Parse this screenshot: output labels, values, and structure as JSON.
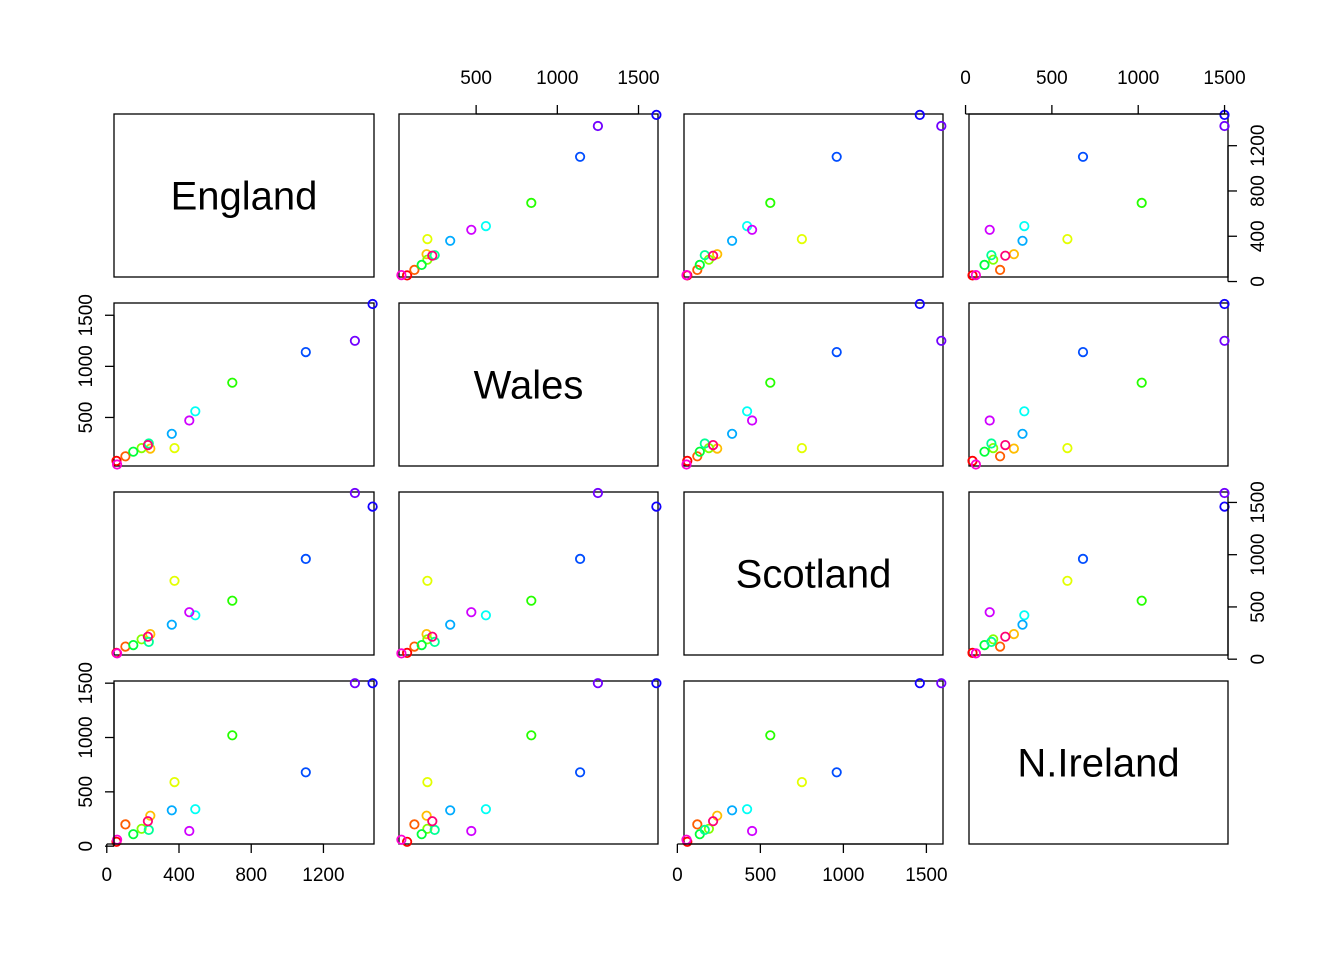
{
  "chart_data": {
    "type": "scatter",
    "chart_kind": "scatterplot-matrix",
    "variables": [
      "England",
      "Wales",
      "Scotland",
      "N.Ireland"
    ],
    "point_colors": [
      "#FF0000",
      "#FF5E00",
      "#FFBD00",
      "#E3FF00",
      "#84FF00",
      "#26FF00",
      "#00FF38",
      "#00FF96",
      "#00FFF5",
      "#00ABFF",
      "#004DFF",
      "#1200FF",
      "#7100FF",
      "#CF00FF",
      "#FF00D3",
      "#FF0075"
    ],
    "data": {
      "England": [
        54,
        103,
        241,
        375,
        193,
        695,
        147,
        233,
        490,
        360,
        1102,
        1472,
        1374,
        457,
        57,
        228
      ],
      "Wales": [
        75,
        120,
        195,
        200,
        200,
        840,
        165,
        245,
        560,
        340,
        1140,
        1610,
        1250,
        470,
        40,
        230
      ],
      "Scotland": [
        60,
        120,
        240,
        750,
        190,
        560,
        135,
        165,
        420,
        330,
        960,
        1460,
        1590,
        450,
        55,
        215
      ],
      "N.Ireland": [
        40,
        200,
        280,
        590,
        160,
        1020,
        110,
        150,
        340,
        330,
        680,
        1500,
        1500,
        140,
        60,
        230
      ]
    },
    "ranges": {
      "England": [
        40,
        1480
      ],
      "Wales": [
        25,
        1620
      ],
      "Scotland": [
        40,
        1600
      ],
      "N.Ireland": [
        20,
        1520
      ]
    },
    "ticks": {
      "England": [
        0,
        400,
        800,
        1200
      ],
      "Wales": [
        500,
        1000,
        1500
      ],
      "Scotland": [
        0,
        500,
        1000,
        1500
      ],
      "N.Ireland": [
        0,
        500,
        1000,
        1500
      ]
    },
    "grid": false,
    "legend": "none"
  }
}
